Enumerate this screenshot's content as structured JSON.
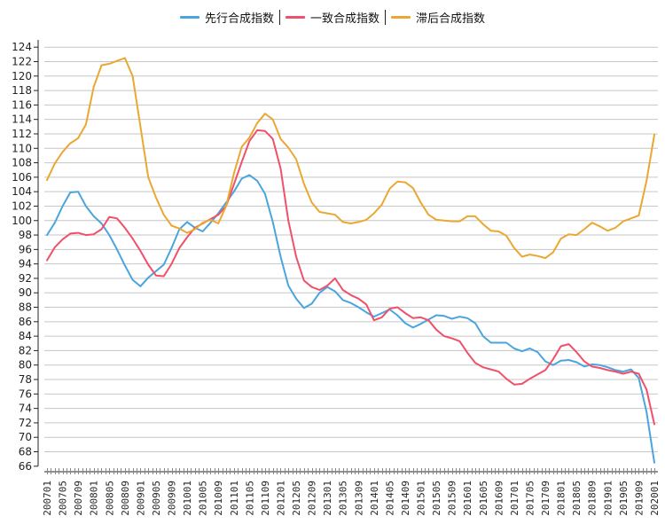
{
  "chart_data": {
    "type": "line",
    "title": "",
    "xlabel": "",
    "ylabel": "",
    "ylim": [
      66,
      124
    ],
    "y_step": 2,
    "grid": true,
    "legend_position": "top-center",
    "y_tick_labels": [
      "66",
      "68",
      "70",
      "72",
      "74",
      "76",
      "78",
      "80",
      "82",
      "84",
      "86",
      "88",
      "90",
      "92",
      "94",
      "96",
      "98",
      "100",
      "102",
      "104",
      "106",
      "108",
      "110",
      "112",
      "114",
      "116",
      "118",
      "120",
      "122",
      "124"
    ],
    "x_first_month": "200701",
    "x_month_count": 157,
    "x_tick_labels": [
      "200701",
      "200705",
      "200709",
      "200801",
      "200805",
      "200809",
      "200901",
      "200905",
      "200909",
      "201001",
      "201005",
      "201009",
      "201101",
      "201105",
      "201109",
      "201201",
      "201205",
      "201209",
      "201301",
      "201305",
      "201309",
      "201401",
      "201405",
      "201409",
      "201501",
      "201505",
      "201509",
      "201601",
      "201605",
      "201609",
      "201701",
      "201705",
      "201709",
      "201801",
      "201805",
      "201809",
      "201901",
      "201905",
      "201909",
      "202001"
    ],
    "series_sampling": "every 2 months starting 200701",
    "series": [
      {
        "name": "先行合成指数",
        "color": "#4aa5de",
        "values": [
          98.0,
          99.7,
          102.0,
          103.9,
          104.0,
          102.0,
          100.6,
          99.6,
          98.0,
          96.0,
          93.8,
          91.8,
          90.9,
          92.1,
          93.0,
          93.9,
          96.2,
          98.8,
          99.8,
          99.0,
          98.5,
          99.7,
          101.0,
          102.5,
          104.0,
          105.8,
          106.3,
          105.5,
          103.7,
          99.8,
          95.0,
          91.0,
          89.2,
          87.9,
          88.5,
          90.0,
          90.8,
          90.2,
          89.0,
          88.6,
          88.0,
          87.3,
          86.7,
          87.2,
          87.7,
          86.9,
          85.8,
          85.2,
          85.7,
          86.3,
          86.9,
          86.8,
          86.4,
          86.7,
          86.5,
          85.8,
          84.0,
          83.1,
          83.1,
          83.1,
          82.3,
          81.9,
          82.3,
          81.8,
          80.5,
          80.0,
          80.6,
          80.7,
          80.4,
          79.8,
          80.1,
          80.0,
          79.7,
          79.3,
          79.1,
          79.4,
          78.2,
          73.5,
          66.5
        ]
      },
      {
        "name": "一致合成指数",
        "color": "#f0506a",
        "values": [
          94.5,
          96.3,
          97.4,
          98.2,
          98.3,
          98.0,
          98.1,
          98.8,
          100.5,
          100.3,
          99.0,
          97.5,
          95.8,
          93.9,
          92.4,
          92.3,
          94.0,
          96.2,
          97.7,
          99.0,
          99.6,
          100.2,
          100.8,
          102.0,
          105.0,
          108.1,
          111.0,
          112.5,
          112.4,
          111.3,
          107.2,
          100.0,
          95.0,
          91.7,
          90.8,
          90.4,
          91.0,
          92.0,
          90.4,
          89.7,
          89.2,
          88.4,
          86.2,
          86.6,
          87.8,
          88.0,
          87.2,
          86.5,
          86.6,
          86.2,
          84.9,
          84.0,
          83.7,
          83.3,
          81.7,
          80.3,
          79.7,
          79.4,
          79.1,
          78.1,
          77.3,
          77.4,
          78.1,
          78.7,
          79.3,
          80.8,
          82.6,
          82.9,
          81.8,
          80.5,
          79.8,
          79.6,
          79.3,
          79.1,
          78.8,
          79.1,
          78.8,
          76.6,
          71.8
        ]
      },
      {
        "name": "滞后合成指数",
        "color": "#eaa832",
        "values": [
          105.6,
          107.9,
          109.5,
          110.7,
          111.4,
          113.3,
          118.5,
          121.5,
          121.7,
          122.1,
          122.5,
          120.0,
          113.0,
          106.0,
          103.2,
          100.8,
          99.3,
          98.9,
          98.3,
          98.8,
          99.7,
          100.1,
          99.6,
          102.0,
          106.5,
          110.2,
          111.5,
          113.5,
          114.8,
          114.0,
          111.3,
          110.1,
          108.5,
          105.1,
          102.5,
          101.2,
          101.0,
          100.8,
          99.8,
          99.6,
          99.8,
          100.1,
          101.0,
          102.2,
          104.4,
          105.4,
          105.3,
          104.5,
          102.5,
          100.8,
          100.1,
          100.0,
          99.9,
          99.9,
          100.6,
          100.6,
          99.5,
          98.6,
          98.5,
          97.9,
          96.2,
          95.0,
          95.3,
          95.1,
          94.8,
          95.6,
          97.5,
          98.1,
          98.0,
          98.8,
          99.7,
          99.2,
          98.6,
          99.0,
          99.9,
          100.3,
          100.7,
          105.5,
          111.9
        ]
      }
    ]
  }
}
